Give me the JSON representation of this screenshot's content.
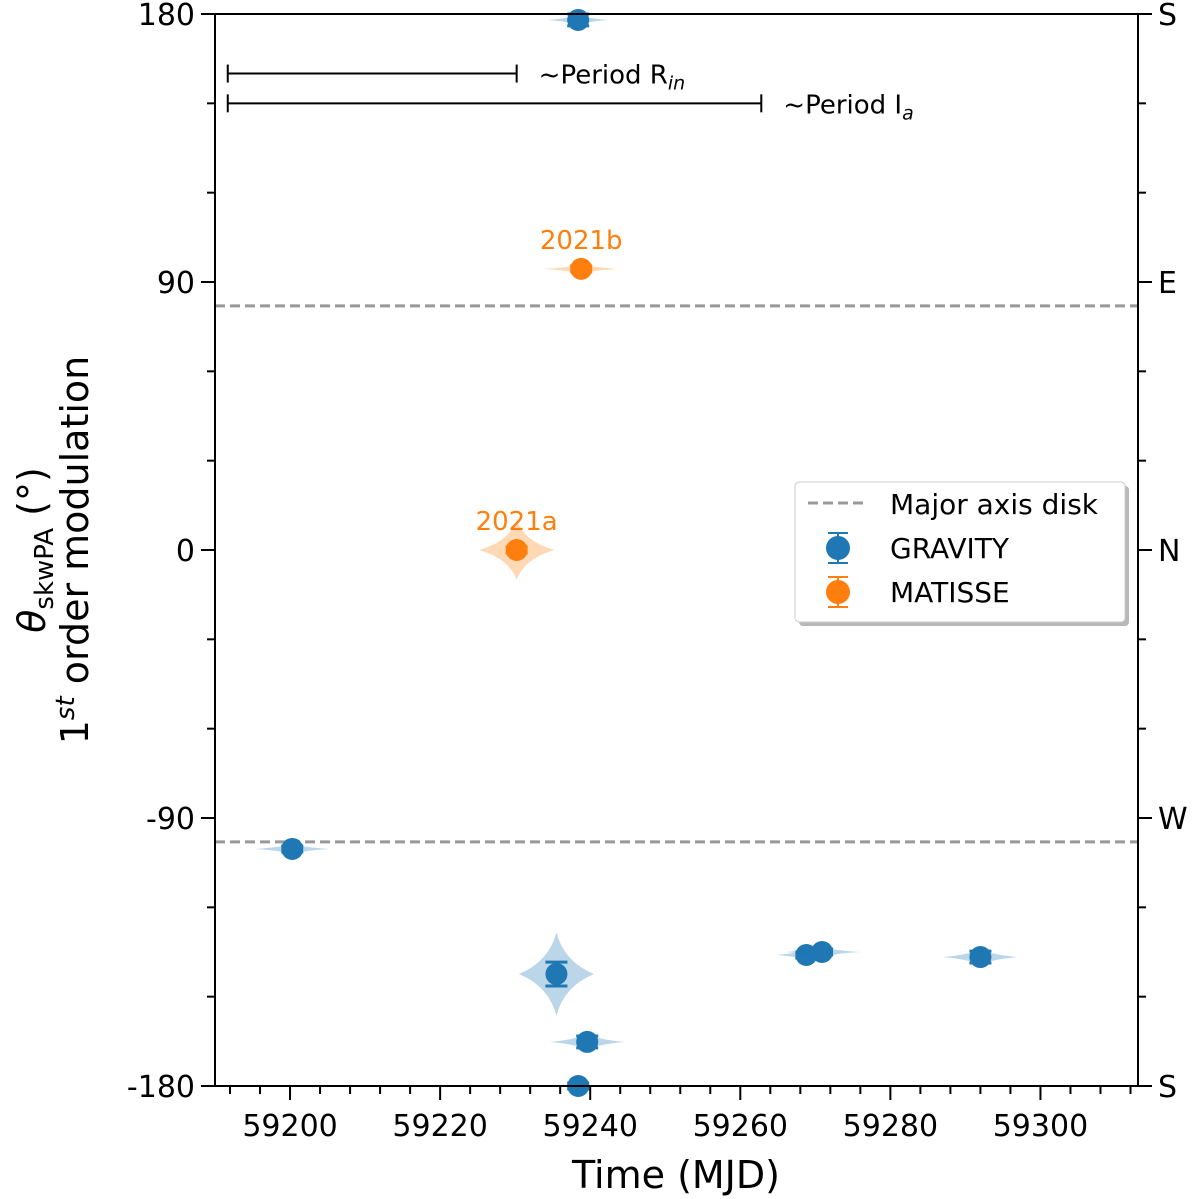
{
  "chart_data": {
    "type": "scatter",
    "xlabel": "Time (MJD)",
    "ylabel_line1": "θ",
    "ylabel_sub": "skwPA",
    "ylabel_unit": " (°)",
    "ylabel_line2_pre": "1",
    "ylabel_line2_sup": "st",
    "ylabel_line2_post": " order modulation",
    "xlim": [
      59190,
      59313
    ],
    "ylim": [
      -180,
      180
    ],
    "xticks": [
      59200,
      59220,
      59240,
      59260,
      59280,
      59300
    ],
    "yticks": [
      -180,
      -90,
      0,
      90,
      180
    ],
    "right_ticks": [
      {
        "value": 180,
        "label": "S"
      },
      {
        "value": 90,
        "label": "E"
      },
      {
        "value": 0,
        "label": "N"
      },
      {
        "value": -90,
        "label": "W"
      },
      {
        "value": -180,
        "label": "S"
      }
    ],
    "grid": false,
    "legend_position": "center-right",
    "major_axis_disk": [
      82,
      -98
    ],
    "series": [
      {
        "name": "GRAVITY",
        "color": "#1f77b4",
        "points": [
          {
            "x": 59238.4,
            "y": 178,
            "err": 2,
            "vw": 4,
            "vh": 2
          },
          {
            "x": 59200.3,
            "y": -100.4,
            "err": 1,
            "vw": 5,
            "vh": 2
          },
          {
            "x": 59235.5,
            "y": -142.4,
            "err": 4,
            "vw": 5,
            "vh": 14
          },
          {
            "x": 59239.6,
            "y": -165.2,
            "err": 2,
            "vw": 5,
            "vh": 3
          },
          {
            "x": 59238.4,
            "y": -180,
            "err": 1,
            "vw": 2,
            "vh": 2
          },
          {
            "x": 59268.8,
            "y": -136,
            "err": 1,
            "vw": 4,
            "vh": 2
          },
          {
            "x": 59270.9,
            "y": -135,
            "err": 1,
            "vw": 5,
            "vh": 2
          },
          {
            "x": 59292.0,
            "y": -136.7,
            "err": 2,
            "vw": 5,
            "vh": 3
          }
        ]
      },
      {
        "name": "MATISSE",
        "color": "#ff7f0e",
        "points": [
          {
            "x": 59230.2,
            "y": 0,
            "err": 1,
            "vw": 5,
            "vh": 10,
            "label": "2021a"
          },
          {
            "x": 59238.8,
            "y": 94.4,
            "err": 1,
            "vw": 5,
            "vh": 2,
            "label": "2021b"
          }
        ]
      }
    ],
    "periods": [
      {
        "label": "~Period R",
        "sub": "in",
        "x0": 59191.7,
        "x1": 59230.2,
        "y": 160
      },
      {
        "label": "~Period I",
        "sub": "a",
        "x0": 59191.7,
        "x1": 59262.8,
        "y": 150
      }
    ],
    "legend": {
      "line_label": "Major axis disk"
    }
  }
}
